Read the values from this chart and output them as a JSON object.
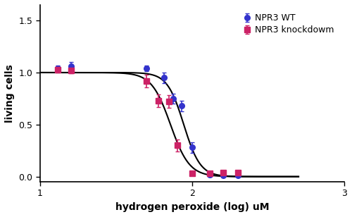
{
  "title": "",
  "xlabel": "hydrogen peroxide (log) uM",
  "ylabel": "living cells",
  "xlim_log": [
    1.0,
    3.0
  ],
  "ylim": [
    -0.05,
    1.65
  ],
  "yticks": [
    0.0,
    0.5,
    1.0,
    1.5
  ],
  "wt_x": [
    13,
    16,
    50,
    65,
    75,
    85,
    100,
    130,
    160,
    200
  ],
  "wt_y": [
    1.04,
    1.06,
    1.04,
    0.95,
    0.75,
    0.68,
    0.28,
    0.02,
    0.01,
    0.01
  ],
  "wt_yerr": [
    0.03,
    0.04,
    0.03,
    0.05,
    0.05,
    0.05,
    0.05,
    0.02,
    0.01,
    0.01
  ],
  "kd_x": [
    13,
    16,
    50,
    60,
    70,
    80,
    100,
    130,
    160,
    200
  ],
  "kd_y": [
    1.03,
    1.02,
    0.92,
    0.73,
    0.72,
    0.3,
    0.03,
    0.03,
    0.04,
    0.04
  ],
  "kd_yerr": [
    0.03,
    0.03,
    0.06,
    0.06,
    0.06,
    0.06,
    0.02,
    0.01,
    0.01,
    0.01
  ],
  "wt_color": "#3333cc",
  "kd_color": "#cc2266",
  "wt_label": "NPR3 WT",
  "kd_label": "NPR3 knockdowm",
  "wt_ec50": 88,
  "wt_hill": 8.0,
  "kd_ec50": 72,
  "kd_hill": 7.0,
  "curve_color": "#000000",
  "marker_size": 5.5,
  "bg_color": "#ffffff",
  "border_color": "#000000"
}
